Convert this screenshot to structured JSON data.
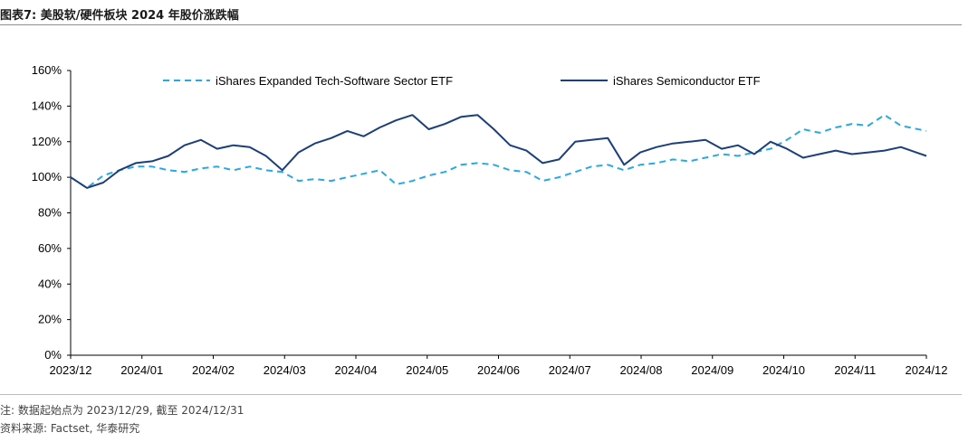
{
  "header": {
    "title": "图表7:  美股软/硬件板块 2024 年股价涨跌幅"
  },
  "footer": {
    "note": "注: 数据起始点为 2023/12/29, 截至 2024/12/31",
    "source": "资料来源: Factset, 华泰研究"
  },
  "chart_data": {
    "type": "line",
    "title": "",
    "xlabel": "",
    "ylabel": "",
    "x_ticks": [
      "2023/12",
      "2024/01",
      "2024/02",
      "2024/03",
      "2024/04",
      "2024/05",
      "2024/06",
      "2024/07",
      "2024/08",
      "2024/09",
      "2024/10",
      "2024/11",
      "2024/12"
    ],
    "y_ticks": [
      "0%",
      "20%",
      "40%",
      "60%",
      "80%",
      "100%",
      "120%",
      "140%",
      "160%"
    ],
    "ylim": [
      0,
      160
    ],
    "grid": false,
    "legend_position": "top",
    "x_unit": "date (year/month)",
    "series": [
      {
        "name": "iShares Expanded Tech-Software Sector ETF",
        "style": "dashed",
        "color": "#29A9E0",
        "x": [
          "2023/12/29",
          "2024/01/05",
          "2024/01/12",
          "2024/01/19",
          "2024/01/26",
          "2024/02/02",
          "2024/02/09",
          "2024/02/16",
          "2024/02/23",
          "2024/03/01",
          "2024/03/08",
          "2024/03/15",
          "2024/03/22",
          "2024/03/29",
          "2024/04/05",
          "2024/04/12",
          "2024/04/19",
          "2024/04/26",
          "2024/05/03",
          "2024/05/10",
          "2024/05/17",
          "2024/05/24",
          "2024/05/31",
          "2024/06/07",
          "2024/06/14",
          "2024/06/21",
          "2024/06/28",
          "2024/07/05",
          "2024/07/12",
          "2024/07/19",
          "2024/07/26",
          "2024/08/02",
          "2024/08/09",
          "2024/08/16",
          "2024/08/23",
          "2024/08/30",
          "2024/09/06",
          "2024/09/13",
          "2024/09/20",
          "2024/09/27",
          "2024/10/04",
          "2024/10/11",
          "2024/10/18",
          "2024/10/25",
          "2024/11/01",
          "2024/11/08",
          "2024/11/15",
          "2024/11/22",
          "2024/11/29",
          "2024/12/06",
          "2024/12/13",
          "2024/12/20",
          "2024/12/31"
        ],
        "values": [
          100,
          94,
          101,
          104,
          106,
          106,
          104,
          103,
          105,
          106,
          104,
          106,
          104,
          103,
          98,
          99,
          98,
          100,
          102,
          104,
          96,
          98,
          101,
          103,
          107,
          108,
          107,
          104,
          103,
          98,
          100,
          103,
          106,
          107,
          104,
          107,
          108,
          110,
          109,
          111,
          113,
          112,
          114,
          116,
          121,
          127,
          125,
          128,
          130,
          129,
          135,
          129,
          126
        ]
      },
      {
        "name": "iShares Semiconductor ETF",
        "style": "solid",
        "color": "#1B3F7A",
        "x": [
          "2023/12/29",
          "2024/01/05",
          "2024/01/12",
          "2024/01/19",
          "2024/01/26",
          "2024/02/02",
          "2024/02/09",
          "2024/02/16",
          "2024/02/23",
          "2024/03/01",
          "2024/03/08",
          "2024/03/15",
          "2024/03/22",
          "2024/03/29",
          "2024/04/05",
          "2024/04/12",
          "2024/04/19",
          "2024/04/26",
          "2024/05/03",
          "2024/05/10",
          "2024/05/17",
          "2024/05/24",
          "2024/05/31",
          "2024/06/07",
          "2024/06/14",
          "2024/06/21",
          "2024/06/28",
          "2024/07/05",
          "2024/07/12",
          "2024/07/19",
          "2024/07/26",
          "2024/08/02",
          "2024/08/09",
          "2024/08/16",
          "2024/08/23",
          "2024/08/30",
          "2024/09/06",
          "2024/09/13",
          "2024/09/20",
          "2024/09/27",
          "2024/10/04",
          "2024/10/11",
          "2024/10/18",
          "2024/10/25",
          "2024/11/01",
          "2024/11/08",
          "2024/11/15",
          "2024/11/22",
          "2024/11/29",
          "2024/12/06",
          "2024/12/13",
          "2024/12/20",
          "2024/12/31"
        ],
        "values": [
          100,
          94,
          97,
          104,
          108,
          109,
          112,
          118,
          121,
          116,
          118,
          117,
          112,
          104,
          114,
          119,
          122,
          126,
          123,
          128,
          132,
          135,
          127,
          130,
          134,
          135,
          127,
          118,
          115,
          108,
          110,
          120,
          121,
          122,
          107,
          114,
          117,
          119,
          120,
          121,
          116,
          118,
          113,
          120,
          116,
          111,
          113,
          115,
          113,
          114,
          115,
          117,
          112
        ]
      }
    ]
  }
}
